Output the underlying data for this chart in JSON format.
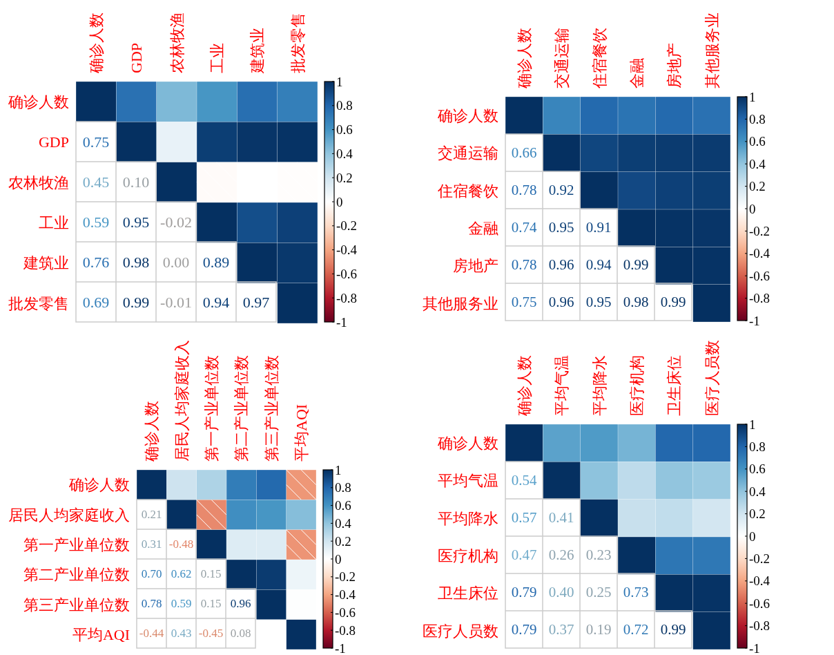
{
  "chart_data": [
    {
      "type": "heatmap",
      "categories": [
        "确诊人数",
        "GDP",
        "农林牧渔",
        "工业",
        "建筑业",
        "批发零售"
      ],
      "y_categories": [
        "确诊人数",
        "GDP",
        "农林牧渔",
        "工业",
        "建筑业",
        "批发零售"
      ],
      "cells": [
        [
          1,
          0.75,
          0.45,
          0.59,
          0.76,
          0.69
        ],
        [
          null,
          1,
          0.1,
          0.95,
          0.98,
          0.99
        ],
        [
          null,
          null,
          1,
          -0.02,
          0,
          -0.01
        ],
        [
          null,
          null,
          null,
          1,
          0.89,
          0.94
        ],
        [
          null,
          null,
          null,
          null,
          1,
          0.97
        ],
        [
          null,
          null,
          null,
          null,
          null,
          1
        ]
      ],
      "cell_labels": [
        [
          null,
          null,
          null,
          null,
          null,
          null
        ],
        [
          "0.75",
          null,
          null,
          null,
          null,
          null
        ],
        [
          "0.45",
          "0.10",
          null,
          null,
          null,
          null
        ],
        [
          "0.59",
          "0.95",
          "-0.02",
          null,
          null,
          null
        ],
        [
          "0.76",
          "0.98",
          "0.00",
          "0.89",
          null,
          null
        ],
        [
          "0.69",
          "0.99",
          "-0.01",
          "0.94",
          "0.97",
          null
        ]
      ],
      "clim": [
        -1,
        1
      ],
      "cticks": [
        1,
        0.8,
        0.6,
        0.4,
        0.2,
        0,
        -0.2,
        -0.4,
        -0.6,
        -0.8,
        -1
      ]
    },
    {
      "type": "heatmap",
      "categories": [
        "确诊人数",
        "交通运输",
        "住宿餐饮",
        "金融",
        "房地产",
        "其他服务业"
      ],
      "y_categories": [
        "确诊人数",
        "交通运输",
        "住宿餐饮",
        "金融",
        "房地产",
        "其他服务业"
      ],
      "cells": [
        [
          1,
          0.66,
          0.78,
          0.74,
          0.78,
          0.75
        ],
        [
          null,
          1,
          0.92,
          0.95,
          0.96,
          0.96
        ],
        [
          null,
          null,
          1,
          0.91,
          0.94,
          0.95
        ],
        [
          null,
          null,
          null,
          1,
          0.99,
          0.98
        ],
        [
          null,
          null,
          null,
          null,
          1,
          0.99
        ],
        [
          null,
          null,
          null,
          null,
          null,
          1
        ]
      ],
      "cell_labels": [
        [
          null,
          null,
          null,
          null,
          null,
          null
        ],
        [
          "0.66",
          null,
          null,
          null,
          null,
          null
        ],
        [
          "0.78",
          "0.92",
          null,
          null,
          null,
          null
        ],
        [
          "0.74",
          "0.95",
          "0.91",
          null,
          null,
          null
        ],
        [
          "0.78",
          "0.96",
          "0.94",
          "0.99",
          null,
          null
        ],
        [
          "0.75",
          "0.96",
          "0.95",
          "0.98",
          "0.99",
          null
        ]
      ],
      "clim": [
        -1,
        1
      ],
      "cticks": [
        1,
        0.8,
        0.6,
        0.4,
        0.2,
        0,
        -0.2,
        -0.4,
        -0.6,
        -0.8,
        -1
      ]
    },
    {
      "type": "heatmap",
      "categories": [
        "确诊人数",
        "居民人均家庭收入",
        "第一产业单位数",
        "第二产业单位数",
        "第三产业单位数",
        "平均AQI"
      ],
      "y_categories": [
        "确诊人数",
        "居民人均家庭收入",
        "第一产业单位数",
        "第二产业单位数",
        "第三产业单位数",
        "平均AQI"
      ],
      "cells": [
        [
          1,
          0.21,
          0.31,
          0.7,
          0.78,
          -0.44
        ],
        [
          null,
          1,
          -0.48,
          0.62,
          0.59,
          0.43
        ],
        [
          null,
          null,
          1,
          0.15,
          0.15,
          -0.45
        ],
        [
          null,
          null,
          null,
          1,
          0.96,
          0.08
        ],
        [
          null,
          null,
          null,
          null,
          1,
          0.01
        ],
        [
          null,
          null,
          null,
          null,
          null,
          1
        ]
      ],
      "cell_labels": [
        [
          null,
          null,
          null,
          null,
          null,
          null
        ],
        [
          "0.21",
          null,
          null,
          null,
          null,
          null
        ],
        [
          "0.31",
          "-0.48",
          null,
          null,
          null,
          null
        ],
        [
          "0.70",
          "0.62",
          "0.15",
          null,
          null,
          null
        ],
        [
          "0.78",
          "0.59",
          "0.15",
          "0.96",
          null,
          null
        ],
        [
          "-0.44",
          "0.43",
          "-0.45",
          "0.08",
          null,
          null
        ]
      ],
      "clim": [
        -1,
        1
      ],
      "cticks": [
        1,
        0.8,
        0.6,
        0.4,
        0.2,
        0,
        -0.2,
        -0.4,
        -0.6,
        -0.8,
        -1
      ]
    },
    {
      "type": "heatmap",
      "categories": [
        "确诊人数",
        "平均气温",
        "平均降水",
        "医疗机构",
        "卫生床位",
        "医疗人员数"
      ],
      "y_categories": [
        "确诊人数",
        "平均气温",
        "平均降水",
        "医疗机构",
        "卫生床位",
        "医疗人员数"
      ],
      "cells": [
        [
          1,
          0.54,
          0.57,
          0.47,
          0.79,
          0.79
        ],
        [
          null,
          1,
          0.41,
          0.26,
          0.4,
          0.37
        ],
        [
          null,
          null,
          1,
          0.23,
          0.25,
          0.19
        ],
        [
          null,
          null,
          null,
          1,
          0.73,
          0.72
        ],
        [
          null,
          null,
          null,
          null,
          1,
          0.99
        ],
        [
          null,
          null,
          null,
          null,
          null,
          1
        ]
      ],
      "cell_labels": [
        [
          null,
          null,
          null,
          null,
          null,
          null
        ],
        [
          "0.54",
          null,
          null,
          null,
          null,
          null
        ],
        [
          "0.57",
          "0.41",
          null,
          null,
          null,
          null
        ],
        [
          "0.47",
          "0.26",
          "0.23",
          null,
          null,
          null
        ],
        [
          "0.79",
          "0.40",
          "0.25",
          "0.73",
          null,
          null
        ],
        [
          "0.79",
          "0.37",
          "0.19",
          "0.72",
          "0.99",
          null
        ]
      ],
      "clim": [
        -1,
        1
      ],
      "cticks": [
        1,
        0.8,
        0.6,
        0.4,
        0.2,
        0,
        -0.2,
        -0.4,
        -0.6,
        -0.8,
        -1
      ]
    }
  ]
}
